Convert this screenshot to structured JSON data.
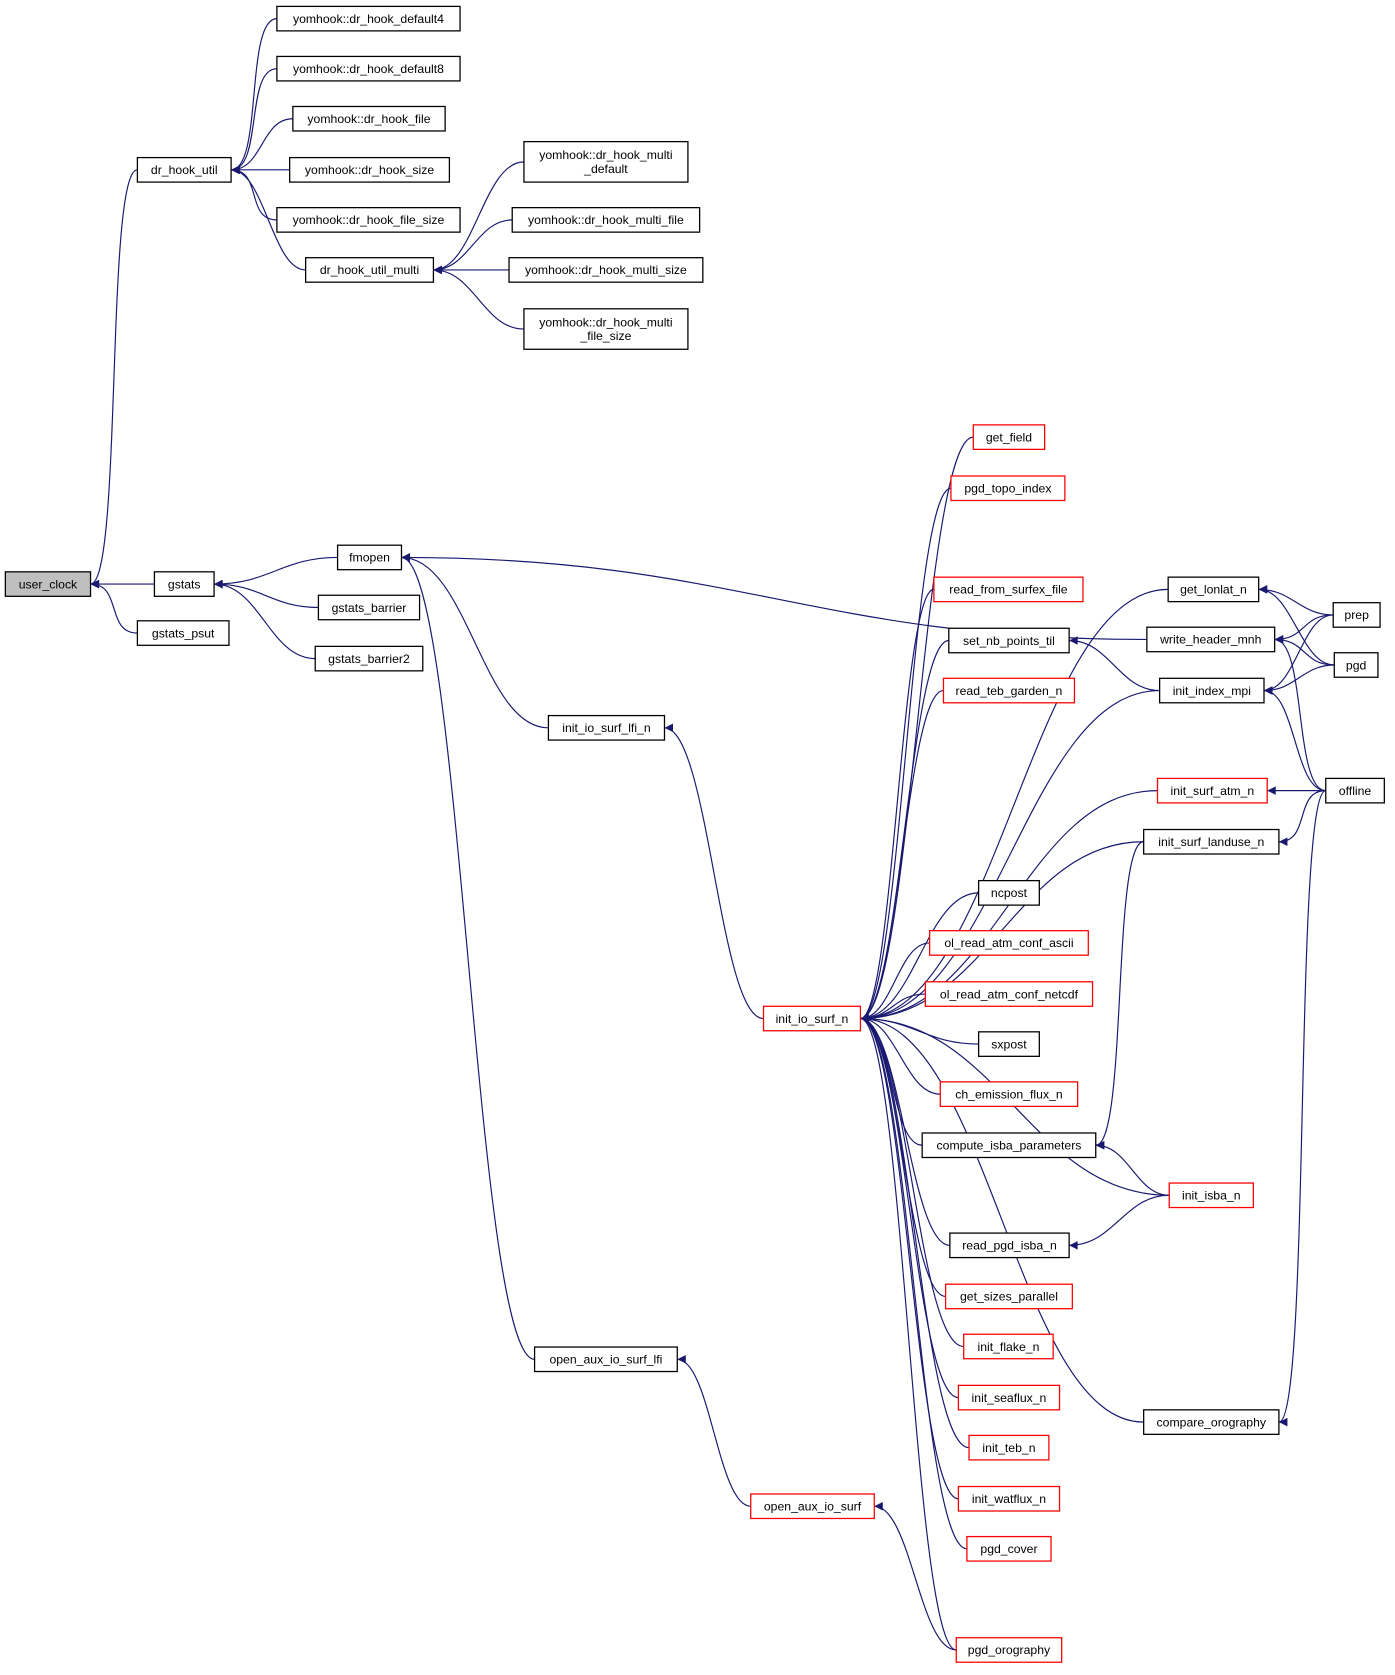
{
  "colors": {
    "edge": "#191970",
    "highlight_fill": "#bfbfbf",
    "truncated_border": "#ff0000",
    "normal_border": "#000000"
  },
  "nodes": [
    {
      "id": "user_clock",
      "label": [
        "user_clock"
      ],
      "style": "highlighted"
    },
    {
      "id": "dr_hook_util",
      "label": [
        "dr_hook_util"
      ],
      "style": "normal"
    },
    {
      "id": "gstats",
      "label": [
        "gstats"
      ],
      "style": "normal"
    },
    {
      "id": "gstats_psut",
      "label": [
        "gstats_psut"
      ],
      "style": "normal"
    },
    {
      "id": "d4",
      "label": [
        "yomhook::dr_hook_default4"
      ],
      "style": "normal"
    },
    {
      "id": "d8",
      "label": [
        "yomhook::dr_hook_default8"
      ],
      "style": "normal"
    },
    {
      "id": "dfile",
      "label": [
        "yomhook::dr_hook_file"
      ],
      "style": "normal"
    },
    {
      "id": "dsize",
      "label": [
        "yomhook::dr_hook_size"
      ],
      "style": "normal"
    },
    {
      "id": "dfilesize",
      "label": [
        "yomhook::dr_hook_file_size"
      ],
      "style": "normal"
    },
    {
      "id": "dr_hook_util_multi",
      "label": [
        "dr_hook_util_multi"
      ],
      "style": "normal"
    },
    {
      "id": "mdefault",
      "label": [
        "yomhook::dr_hook_multi",
        "_default"
      ],
      "style": "normal"
    },
    {
      "id": "mfile",
      "label": [
        "yomhook::dr_hook_multi_file"
      ],
      "style": "normal"
    },
    {
      "id": "msize",
      "label": [
        "yomhook::dr_hook_multi_size"
      ],
      "style": "normal"
    },
    {
      "id": "mfilesize",
      "label": [
        "yomhook::dr_hook_multi",
        "_file_size"
      ],
      "style": "normal"
    },
    {
      "id": "fmopen",
      "label": [
        "fmopen"
      ],
      "style": "normal"
    },
    {
      "id": "gstats_barrier",
      "label": [
        "gstats_barrier"
      ],
      "style": "normal"
    },
    {
      "id": "gstats_barrier2",
      "label": [
        "gstats_barrier2"
      ],
      "style": "normal"
    },
    {
      "id": "init_io_surf_lfi_n",
      "label": [
        "init_io_surf_lfi_n"
      ],
      "style": "normal"
    },
    {
      "id": "open_aux_io_surf_lfi",
      "label": [
        "open_aux_io_surf_lfi"
      ],
      "style": "normal"
    },
    {
      "id": "open_aux_io_surf",
      "label": [
        "open_aux_io_surf"
      ],
      "style": "truncated"
    },
    {
      "id": "init_io_surf_n",
      "label": [
        "init_io_surf_n"
      ],
      "style": "truncated"
    },
    {
      "id": "get_field",
      "label": [
        "get_field"
      ],
      "style": "truncated"
    },
    {
      "id": "pgd_topo_index",
      "label": [
        "pgd_topo_index"
      ],
      "style": "truncated"
    },
    {
      "id": "read_from_surfex_file",
      "label": [
        "read_from_surfex_file"
      ],
      "style": "truncated"
    },
    {
      "id": "set_nb_points_til",
      "label": [
        "set_nb_points_til"
      ],
      "style": "normal"
    },
    {
      "id": "read_teb_garden_n",
      "label": [
        "read_teb_garden_n"
      ],
      "style": "truncated"
    },
    {
      "id": "ncpost",
      "label": [
        "ncpost"
      ],
      "style": "normal"
    },
    {
      "id": "ol_read_atm_conf_ascii",
      "label": [
        "ol_read_atm_conf_ascii"
      ],
      "style": "truncated"
    },
    {
      "id": "ol_read_atm_conf_netcdf",
      "label": [
        "ol_read_atm_conf_netcdf"
      ],
      "style": "truncated"
    },
    {
      "id": "sxpost",
      "label": [
        "sxpost"
      ],
      "style": "normal"
    },
    {
      "id": "ch_emission_flux_n",
      "label": [
        "ch_emission_flux_n"
      ],
      "style": "truncated"
    },
    {
      "id": "compute_isba_parameters",
      "label": [
        "compute_isba_parameters"
      ],
      "style": "normal"
    },
    {
      "id": "read_pgd_isba_n",
      "label": [
        "read_pgd_isba_n"
      ],
      "style": "normal"
    },
    {
      "id": "get_sizes_parallel",
      "label": [
        "get_sizes_parallel"
      ],
      "style": "truncated"
    },
    {
      "id": "init_flake_n",
      "label": [
        "init_flake_n"
      ],
      "style": "truncated"
    },
    {
      "id": "init_seaflux_n",
      "label": [
        "init_seaflux_n"
      ],
      "style": "truncated"
    },
    {
      "id": "init_teb_n",
      "label": [
        "init_teb_n"
      ],
      "style": "truncated"
    },
    {
      "id": "init_watflux_n",
      "label": [
        "init_watflux_n"
      ],
      "style": "truncated"
    },
    {
      "id": "pgd_cover",
      "label": [
        "pgd_cover"
      ],
      "style": "truncated"
    },
    {
      "id": "pgd_orography",
      "label": [
        "pgd_orography"
      ],
      "style": "truncated"
    },
    {
      "id": "get_lonlat_n",
      "label": [
        "get_lonlat_n"
      ],
      "style": "normal"
    },
    {
      "id": "write_header_mnh",
      "label": [
        "write_header_mnh"
      ],
      "style": "normal"
    },
    {
      "id": "init_index_mpi",
      "label": [
        "init_index_mpi"
      ],
      "style": "normal"
    },
    {
      "id": "init_surf_atm_n",
      "label": [
        "init_surf_atm_n"
      ],
      "style": "truncated"
    },
    {
      "id": "init_surf_landuse_n",
      "label": [
        "init_surf_landuse_n"
      ],
      "style": "normal"
    },
    {
      "id": "init_isba_n",
      "label": [
        "init_isba_n"
      ],
      "style": "truncated"
    },
    {
      "id": "compare_orography",
      "label": [
        "compare_orography"
      ],
      "style": "normal"
    },
    {
      "id": "prep",
      "label": [
        "prep"
      ],
      "style": "normal"
    },
    {
      "id": "pgd",
      "label": [
        "pgd"
      ],
      "style": "normal"
    },
    {
      "id": "offline",
      "label": [
        "offline"
      ],
      "style": "normal"
    }
  ],
  "edges": [
    [
      "dr_hook_util",
      "user_clock"
    ],
    [
      "gstats",
      "user_clock"
    ],
    [
      "gstats_psut",
      "user_clock"
    ],
    [
      "d4",
      "dr_hook_util"
    ],
    [
      "d8",
      "dr_hook_util"
    ],
    [
      "dfile",
      "dr_hook_util"
    ],
    [
      "dsize",
      "dr_hook_util"
    ],
    [
      "dfilesize",
      "dr_hook_util"
    ],
    [
      "dr_hook_util_multi",
      "dr_hook_util"
    ],
    [
      "mdefault",
      "dr_hook_util_multi"
    ],
    [
      "mfile",
      "dr_hook_util_multi"
    ],
    [
      "msize",
      "dr_hook_util_multi"
    ],
    [
      "mfilesize",
      "dr_hook_util_multi"
    ],
    [
      "fmopen",
      "gstats"
    ],
    [
      "gstats_barrier",
      "gstats"
    ],
    [
      "gstats_barrier2",
      "gstats"
    ],
    [
      "write_header_mnh",
      "fmopen"
    ],
    [
      "init_io_surf_lfi_n",
      "fmopen"
    ],
    [
      "open_aux_io_surf_lfi",
      "fmopen"
    ],
    [
      "init_io_surf_n",
      "init_io_surf_lfi_n"
    ],
    [
      "open_aux_io_surf",
      "open_aux_io_surf_lfi"
    ],
    [
      "pgd_orography",
      "open_aux_io_surf"
    ],
    [
      "get_field",
      "init_io_surf_n"
    ],
    [
      "pgd_topo_index",
      "init_io_surf_n"
    ],
    [
      "read_from_surfex_file",
      "init_io_surf_n"
    ],
    [
      "set_nb_points_til",
      "init_io_surf_n"
    ],
    [
      "read_teb_garden_n",
      "init_io_surf_n"
    ],
    [
      "ncpost",
      "init_io_surf_n"
    ],
    [
      "ol_read_atm_conf_ascii",
      "init_io_surf_n"
    ],
    [
      "ol_read_atm_conf_netcdf",
      "init_io_surf_n"
    ],
    [
      "sxpost",
      "init_io_surf_n"
    ],
    [
      "ch_emission_flux_n",
      "init_io_surf_n"
    ],
    [
      "compute_isba_parameters",
      "init_io_surf_n"
    ],
    [
      "read_pgd_isba_n",
      "init_io_surf_n"
    ],
    [
      "get_sizes_parallel",
      "init_io_surf_n"
    ],
    [
      "init_flake_n",
      "init_io_surf_n"
    ],
    [
      "init_seaflux_n",
      "init_io_surf_n"
    ],
    [
      "init_teb_n",
      "init_io_surf_n"
    ],
    [
      "init_watflux_n",
      "init_io_surf_n"
    ],
    [
      "pgd_cover",
      "init_io_surf_n"
    ],
    [
      "pgd_orography",
      "init_io_surf_n"
    ],
    [
      "get_lonlat_n",
      "init_io_surf_n"
    ],
    [
      "init_index_mpi",
      "init_io_surf_n"
    ],
    [
      "init_surf_atm_n",
      "init_io_surf_n"
    ],
    [
      "init_surf_landuse_n",
      "init_io_surf_n"
    ],
    [
      "init_isba_n",
      "init_io_surf_n"
    ],
    [
      "compare_orography",
      "init_io_surf_n"
    ],
    [
      "init_index_mpi",
      "set_nb_points_til"
    ],
    [
      "init_surf_landuse_n",
      "compute_isba_parameters"
    ],
    [
      "init_isba_n",
      "compute_isba_parameters"
    ],
    [
      "init_isba_n",
      "read_pgd_isba_n"
    ],
    [
      "prep",
      "get_lonlat_n"
    ],
    [
      "pgd",
      "get_lonlat_n"
    ],
    [
      "prep",
      "write_header_mnh"
    ],
    [
      "pgd",
      "write_header_mnh"
    ],
    [
      "offline",
      "write_header_mnh"
    ],
    [
      "prep",
      "init_index_mpi"
    ],
    [
      "pgd",
      "init_index_mpi"
    ],
    [
      "offline",
      "init_index_mpi"
    ],
    [
      "offline",
      "init_surf_atm_n"
    ],
    [
      "offline",
      "init_surf_landuse_n"
    ],
    [
      "offline",
      "compare_orography"
    ]
  ]
}
